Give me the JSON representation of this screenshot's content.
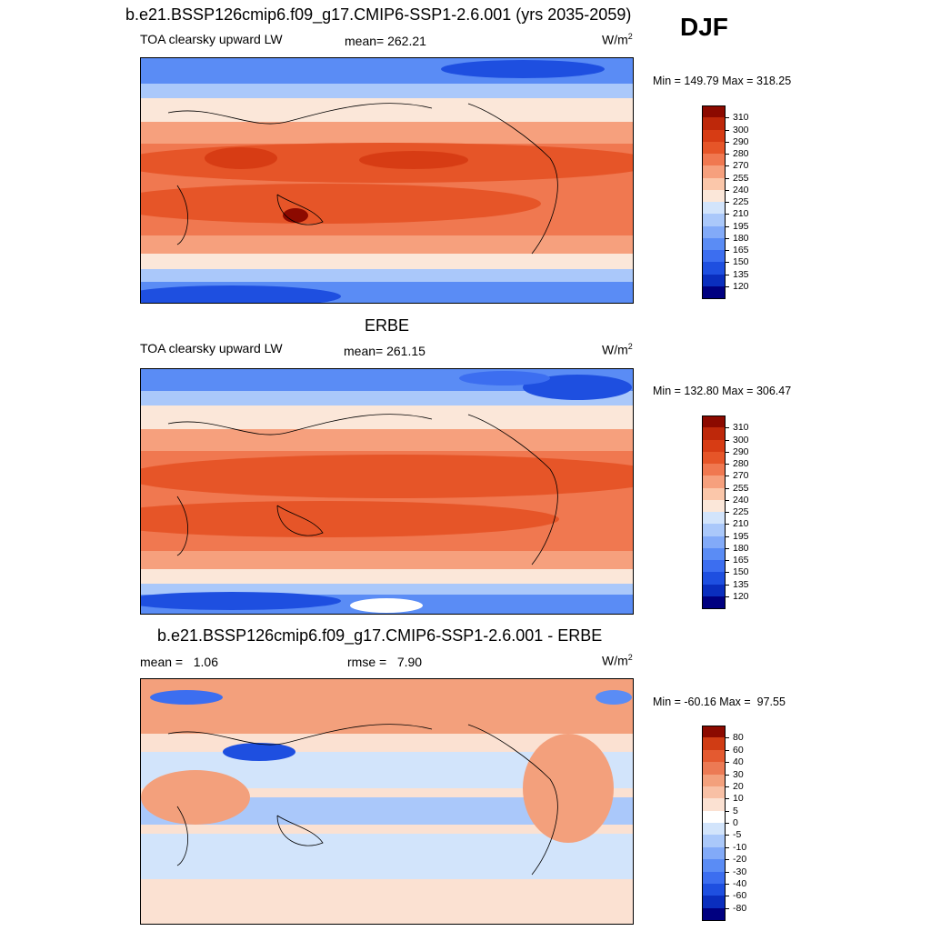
{
  "page": {
    "title": "b.e21.BSSP126cmip6.f09_g17.CMIP6-SSP1-2.6.001 (yrs 2035-2059)",
    "season": "DJF"
  },
  "colors": {
    "abs_scale": [
      "#000080",
      "#0a2ebe",
      "#1e4fe0",
      "#3c6ef0",
      "#5a8cf5",
      "#82aaf8",
      "#aac8fa",
      "#d2e4fb",
      "#fbe7d9",
      "#fbc7aa",
      "#f6a07d",
      "#f07850",
      "#e65528",
      "#d73c14",
      "#be280a",
      "#8c0a00"
    ],
    "diff_scale": [
      "#000080",
      "#0a2ebe",
      "#1e4fe0",
      "#3c6ef0",
      "#5a8cf5",
      "#82aaf8",
      "#aac8fa",
      "#d2e4fb",
      "#ffffff",
      "#ffffff",
      "#fbe1d2",
      "#f8c0a5",
      "#f3a07c",
      "#ec7a54",
      "#e45a30",
      "#d03c14",
      "#a81e05",
      "#8c0a00"
    ]
  },
  "panels": [
    {
      "heading": "",
      "left_label": "TOA clearsky upward LW",
      "mid_label": "mean= 262.21",
      "units": "W/m",
      "units_sup": "2",
      "minmax": "Min = 149.79 Max = 318.25"
    },
    {
      "heading": "ERBE",
      "left_label": "TOA clearsky upward LW",
      "mid_label": "mean= 261.15",
      "units": "W/m",
      "units_sup": "2",
      "minmax": "Min = 132.80 Max = 306.47"
    },
    {
      "heading": "b.e21.BSSP126cmip6.f09_g17.CMIP6-SSP1-2.6.001 - ERBE",
      "left_label": "mean =   1.06",
      "mid_label": "rmse =   7.90",
      "units": "W/m",
      "units_sup": "2",
      "minmax": "Min = -60.16 Max =  97.55"
    }
  ],
  "chart_data": [
    {
      "type": "heatmap",
      "title": "b.e21.BSSP126cmip6.f09_g17.CMIP6-SSP1-2.6.001 (yrs 2035-2059)",
      "variable": "TOA clearsky upward LW",
      "units": "W/m2",
      "mean": 262.21,
      "min": 149.79,
      "max": 318.25,
      "colorbar_levels": [
        120,
        135,
        150,
        165,
        180,
        195,
        210,
        225,
        240,
        255,
        270,
        280,
        290,
        300,
        310
      ]
    },
    {
      "type": "heatmap",
      "title": "ERBE",
      "variable": "TOA clearsky upward LW",
      "units": "W/m2",
      "mean": 261.15,
      "min": 132.8,
      "max": 306.47,
      "colorbar_levels": [
        120,
        135,
        150,
        165,
        180,
        195,
        210,
        225,
        240,
        255,
        270,
        280,
        290,
        300,
        310
      ]
    },
    {
      "type": "heatmap",
      "title": "b.e21.BSSP126cmip6.f09_g17.CMIP6-SSP1-2.6.001 - ERBE",
      "units": "W/m2",
      "mean": 1.06,
      "rmse": 7.9,
      "min": -60.16,
      "max": 97.55,
      "colorbar_levels": [
        -80,
        -60,
        -40,
        -30,
        -20,
        -10,
        -5,
        0,
        5,
        10,
        20,
        30,
        40,
        60,
        80
      ]
    }
  ]
}
